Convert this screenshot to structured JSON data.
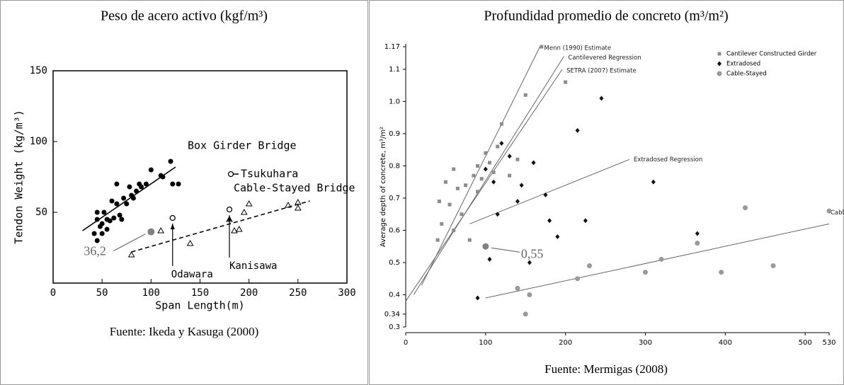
{
  "chart_data": [
    {
      "type": "scatter",
      "title": "Peso de acero activo (kgf/m³)",
      "source": "Fuente: Ikeda y Kasuga (2000)",
      "x_label": "Span Length(m)",
      "y_label": "Tendon Weight (kg/m³)",
      "xlim": [
        0,
        300
      ],
      "xticks": [
        0,
        50,
        100,
        150,
        200,
        250,
        300
      ],
      "ylim": [
        0,
        150
      ],
      "yticks": [
        50,
        100,
        150
      ],
      "series": [
        {
          "name": "Box Girder Bridge",
          "marker": "circle",
          "color": "#000000",
          "x": [
            45,
            48,
            42,
            45,
            50,
            52,
            55,
            58,
            60,
            62,
            65,
            65,
            68,
            70,
            72,
            75,
            78,
            80,
            82,
            85,
            88,
            90,
            95,
            100,
            110,
            112,
            120,
            122,
            128,
            45,
            50,
            55
          ],
          "values": [
            45,
            40,
            35,
            30,
            42,
            50,
            38,
            44,
            58,
            46,
            56,
            70,
            48,
            45,
            60,
            56,
            68,
            62,
            60,
            65,
            70,
            68,
            70,
            80,
            76,
            75,
            86,
            70,
            70,
            50,
            35,
            45
          ]
        },
        {
          "name": "Cable-Stayed Bridge",
          "marker": "triangle",
          "color": "#000000",
          "x": [
            80,
            110,
            140,
            180,
            185,
            190,
            195,
            200,
            240,
            250,
            250
          ],
          "values": [
            20,
            37,
            28,
            45,
            37,
            38,
            50,
            56,
            55,
            53,
            57
          ]
        },
        {
          "name": "Tsukuhara",
          "marker": "open-circle",
          "color": "#000000",
          "x": [
            122,
            180
          ],
          "values": [
            46,
            52
          ]
        }
      ],
      "trend_lines": [
        {
          "x": [
            30,
            125
          ],
          "values": [
            37,
            82
          ],
          "dash": false
        },
        {
          "x": [
            80,
            262
          ],
          "values": [
            22,
            58
          ],
          "dash": true
        }
      ],
      "annotations": [
        "Odawara",
        "Kanisawa"
      ],
      "highlight": {
        "x": 100,
        "value": 36.2,
        "value_label": "36,2",
        "color": "#808080"
      }
    },
    {
      "type": "scatter",
      "title": "Profundidad promedio de concreto (m³/m²)",
      "source": "Fuente: Mermigas (2008)",
      "y_label": "Average depth of concrete, m³/m²",
      "xlim": [
        0,
        530
      ],
      "xticks": [
        0,
        100,
        200,
        300,
        400,
        500,
        530
      ],
      "ylim": [
        0.3,
        1.17
      ],
      "yticks": [
        0.3,
        0.34,
        0.4,
        0.5,
        0.6,
        0.7,
        0.8,
        0.9,
        {
          "value": 1,
          "label": "1.0"
        },
        1.1,
        1.17
      ],
      "legend": "upper right",
      "series": [
        {
          "name": "Cantilever Constructed Girder",
          "marker": "square",
          "color": "#8c8c8c",
          "x": [
            40,
            42,
            45,
            50,
            55,
            60,
            65,
            70,
            75,
            80,
            85,
            90,
            95,
            100,
            105,
            110,
            115,
            120,
            130,
            140,
            150,
            170,
            200,
            60,
            90
          ],
          "values": [
            0.57,
            0.69,
            0.62,
            0.75,
            0.68,
            0.79,
            0.73,
            0.65,
            0.74,
            0.57,
            0.77,
            0.72,
            0.76,
            0.84,
            0.81,
            0.78,
            0.86,
            0.93,
            0.77,
            0.82,
            1.02,
            1.17,
            1.06,
            0.6,
            0.8
          ]
        },
        {
          "name": "Extradosed",
          "marker": "diamond",
          "color": "#111111",
          "x": [
            90,
            100,
            105,
            110,
            115,
            120,
            130,
            140,
            145,
            160,
            175,
            180,
            190,
            215,
            225,
            245,
            310,
            365,
            155
          ],
          "values": [
            0.39,
            0.79,
            0.51,
            0.75,
            0.65,
            0.87,
            0.83,
            0.69,
            0.74,
            0.81,
            0.71,
            0.63,
            0.58,
            0.91,
            0.63,
            1.01,
            0.75,
            0.59,
            0.5
          ]
        },
        {
          "name": "Cable-Stayed",
          "marker": "circle",
          "color": "#999999",
          "x": [
            140,
            150,
            155,
            215,
            230,
            300,
            320,
            365,
            395,
            425,
            460,
            530
          ],
          "values": [
            0.42,
            0.34,
            0.4,
            0.45,
            0.49,
            0.47,
            0.51,
            0.56,
            0.47,
            0.67,
            0.49,
            0.66
          ]
        }
      ],
      "trend_lines": [
        {
          "name": "Menn (1990) Estimate",
          "x": [
            20,
            168
          ],
          "values": [
            0.43,
            1.17
          ],
          "dash": false
        },
        {
          "name": "Cantilevered Regression",
          "x": [
            10,
            198
          ],
          "values": [
            0.4,
            1.14
          ],
          "dash": false
        },
        {
          "name": "SETRA (2007) Estimate",
          "x": [
            0,
            196
          ],
          "values": [
            0.38,
            1.1
          ],
          "dash": false
        },
        {
          "name": "Extradosed Regression",
          "x": [
            80,
            280
          ],
          "values": [
            0.62,
            0.82
          ],
          "dash": false
        },
        {
          "name": "Cable-Stayed Regression",
          "x": [
            100,
            530
          ],
          "values": [
            0.39,
            0.62
          ],
          "dash": false
        }
      ],
      "highlight": {
        "x": 100,
        "value": 0.55,
        "value_label": "0,55",
        "color": "#808080"
      }
    }
  ]
}
